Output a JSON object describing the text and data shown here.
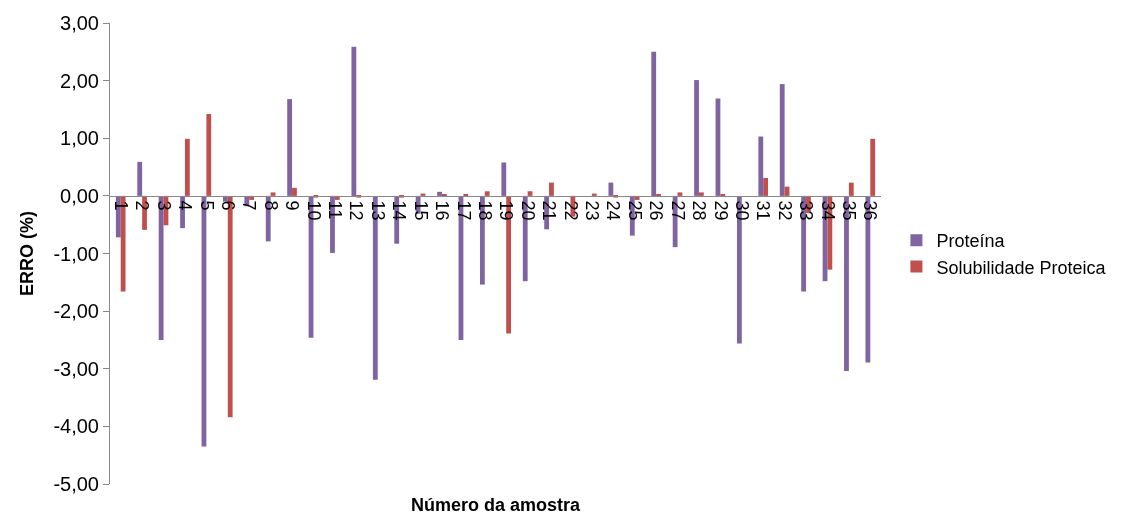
{
  "chart_data": {
    "type": "bar",
    "xlabel": "Número da amostra",
    "ylabel": "ERRO (%)",
    "categories": [
      "1",
      "2",
      "3",
      "4",
      "5",
      "6",
      "7",
      "8",
      "9",
      "10",
      "11",
      "12",
      "13",
      "14",
      "15",
      "16",
      "17",
      "18",
      "19",
      "20",
      "21",
      "22",
      "23",
      "24",
      "25",
      "26",
      "27",
      "28",
      "29",
      "30",
      "31",
      "32",
      "33",
      "34",
      "35",
      "36"
    ],
    "series": [
      {
        "name": "Proteína",
        "color": "#8064a2",
        "values": [
          -0.72,
          0.59,
          -2.5,
          -0.56,
          -4.35,
          -0.1,
          -0.18,
          -0.79,
          1.68,
          -2.46,
          -0.99,
          2.59,
          -3.19,
          -0.83,
          -0.31,
          0.07,
          -2.5,
          -1.54,
          0.58,
          -1.48,
          -0.58,
          null,
          null,
          0.23,
          -0.69,
          2.5,
          -0.89,
          2.01,
          1.69,
          -2.56,
          1.03,
          1.94,
          -1.66,
          -1.48,
          -3.04,
          -2.89
        ]
      },
      {
        "name": "Solubilidade Proteica",
        "color": "#c0504d",
        "values": [
          -1.66,
          -0.59,
          -0.51,
          0.99,
          1.42,
          -3.84,
          -0.07,
          0.06,
          0.14,
          -0.03,
          -0.07,
          -0.03,
          null,
          -0.03,
          0.04,
          0.03,
          0.03,
          0.08,
          -2.39,
          0.08,
          0.23,
          -0.36,
          0.04,
          -0.03,
          -0.07,
          0.03,
          0.06,
          0.06,
          0.03,
          0.0,
          0.31,
          0.16,
          -0.3,
          -1.28,
          0.23,
          0.99
        ]
      }
    ],
    "ylim": [
      -5,
      3
    ],
    "yticks": [
      {
        "value": -5,
        "label": "-5,00"
      },
      {
        "value": -4,
        "label": "-4,00"
      },
      {
        "value": -3,
        "label": "-3,00"
      },
      {
        "value": -2,
        "label": "-2,00"
      },
      {
        "value": -1,
        "label": "-1,00"
      },
      {
        "value": 0,
        "label": "0,00"
      },
      {
        "value": 1,
        "label": "1,00"
      },
      {
        "value": 2,
        "label": "2,00"
      },
      {
        "value": 3,
        "label": "3,00"
      }
    ],
    "legend": "right"
  }
}
